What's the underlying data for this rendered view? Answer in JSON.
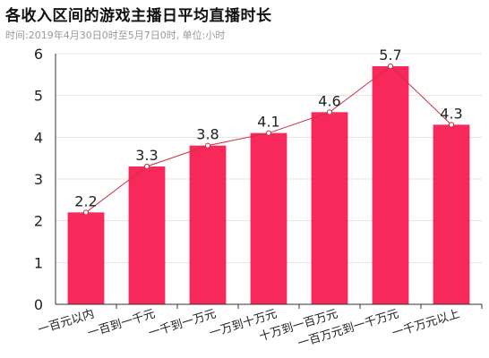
{
  "header": {
    "title": "各收入区间的游戏主播日平均直播时长",
    "subtitle": "时间:2019年4月30日0时至5月7日0时, 单位:小时"
  },
  "chart_data": {
    "type": "bar",
    "categories": [
      "一百元以内",
      "一百到一千元",
      "一千到一万元",
      "一万到十万元",
      "十万到一百万元",
      "一百万元到一千万元",
      "一千万元以上"
    ],
    "values": [
      2.2,
      3.3,
      3.8,
      4.1,
      4.6,
      5.7,
      4.3
    ],
    "data_labels": [
      "2.2",
      "3.3",
      "3.8",
      "4.1",
      "4.6",
      "5.7",
      "4.3"
    ],
    "overlay_line": true,
    "ylim": [
      0,
      6
    ],
    "yticks": [
      "0",
      "1",
      "2",
      "3",
      "4",
      "5",
      "6"
    ],
    "grid": true,
    "colors": {
      "bar": "#f8285a",
      "line": "#c83242",
      "grid": "#e3e3e3"
    }
  }
}
